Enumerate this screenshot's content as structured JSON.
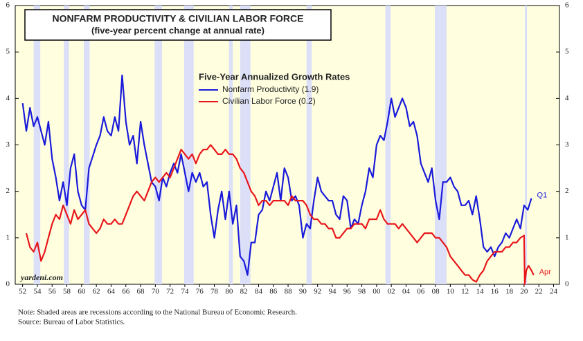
{
  "chart_data": {
    "type": "line",
    "title": "NONFARM PRODUCTIVITY & CIVILIAN LABOR FORCE",
    "subtitle": "(five-year percent change at annual rate)",
    "legend_title": "Five-Year Annualized Growth Rates",
    "annotations": [
      "Q1",
      "Apr",
      "yardeni.com"
    ],
    "notes": [
      "Note: Shaded areas are recessions according to the National Bureau of Economic Research.",
      "Source: Bureau of Labor Statistics."
    ],
    "recessions": [
      [
        1953.5,
        1954.4
      ],
      [
        1957.6,
        1958.3
      ],
      [
        1960.3,
        1961.1
      ],
      [
        1969.9,
        1970.9
      ],
      [
        1973.9,
        1975.2
      ],
      [
        1980.0,
        1980.5
      ],
      [
        1981.5,
        1982.9
      ],
      [
        1990.5,
        1991.2
      ],
      [
        2001.2,
        2001.9
      ],
      [
        2007.9,
        2009.5
      ],
      [
        2020.1,
        2020.4
      ]
    ],
    "recession_color": "#dcdff8",
    "background": "#ffffe0",
    "xlim": [
      1951,
      2024.8
    ],
    "ylim": [
      0,
      6
    ],
    "yticks": [
      0,
      1,
      2,
      3,
      4,
      5,
      6
    ],
    "y2lim": [
      0,
      6
    ],
    "y2ticks": [
      0,
      1,
      2,
      3,
      4,
      5,
      6
    ],
    "xticks": [
      {
        "value": 1952,
        "label": "52"
      },
      {
        "value": 1954,
        "label": "54"
      },
      {
        "value": 1956,
        "label": "56"
      },
      {
        "value": 1958,
        "label": "58"
      },
      {
        "value": 1960,
        "label": "60"
      },
      {
        "value": 1962,
        "label": "62"
      },
      {
        "value": 1964,
        "label": "64"
      },
      {
        "value": 1966,
        "label": "66"
      },
      {
        "value": 1968,
        "label": "68"
      },
      {
        "value": 1970,
        "label": "70"
      },
      {
        "value": 1972,
        "label": "72"
      },
      {
        "value": 1974,
        "label": "74"
      },
      {
        "value": 1976,
        "label": "76"
      },
      {
        "value": 1978,
        "label": "78"
      },
      {
        "value": 1980,
        "label": "80"
      },
      {
        "value": 1982,
        "label": "82"
      },
      {
        "value": 1984,
        "label": "84"
      },
      {
        "value": 1986,
        "label": "86"
      },
      {
        "value": 1988,
        "label": "88"
      },
      {
        "value": 1990,
        "label": "90"
      },
      {
        "value": 1992,
        "label": "92"
      },
      {
        "value": 1994,
        "label": "94"
      },
      {
        "value": 1996,
        "label": "96"
      },
      {
        "value": 1998,
        "label": "98"
      },
      {
        "value": 2000,
        "label": "00"
      },
      {
        "value": 2002,
        "label": "02"
      },
      {
        "value": 2004,
        "label": "04"
      },
      {
        "value": 2006,
        "label": "06"
      },
      {
        "value": 2008,
        "label": "08"
      },
      {
        "value": 2010,
        "label": "10"
      },
      {
        "value": 2012,
        "label": "12"
      },
      {
        "value": 2014,
        "label": "14"
      },
      {
        "value": 2016,
        "label": "16"
      },
      {
        "value": 2018,
        "label": "18"
      },
      {
        "value": 2020,
        "label": "20"
      },
      {
        "value": 2022,
        "label": "22"
      },
      {
        "value": 2024,
        "label": "24"
      }
    ],
    "series": [
      {
        "name": "Nonfarm Productivity (1.9)",
        "color": "#1a1adb",
        "x": [
          1952,
          1952.5,
          1953,
          1953.5,
          1954,
          1954.5,
          1955,
          1955.5,
          1956,
          1956.5,
          1957,
          1957.5,
          1958,
          1958.5,
          1959,
          1959.5,
          1960,
          1960.5,
          1961,
          1962,
          1962.5,
          1963,
          1963.5,
          1964,
          1964.5,
          1965,
          1965.5,
          1966,
          1966.5,
          1967,
          1967.5,
          1968,
          1968.5,
          1969,
          1969.5,
          1970,
          1970.5,
          1971,
          1971.5,
          1972,
          1972.5,
          1973,
          1973.5,
          1974,
          1974.5,
          1975,
          1975.5,
          1976,
          1976.5,
          1977,
          1977.5,
          1978,
          1978.5,
          1979,
          1979.5,
          1980,
          1980.5,
          1981,
          1981.5,
          1982,
          1982.5,
          1983,
          1983.5,
          1984,
          1984.5,
          1985,
          1985.5,
          1986,
          1986.5,
          1987,
          1987.5,
          1988,
          1988.5,
          1989,
          1989.5,
          1990,
          1990.5,
          1991,
          1991.5,
          1992,
          1992.5,
          1993,
          1993.5,
          1994,
          1994.5,
          1995,
          1995.5,
          1996,
          1996.5,
          1997,
          1997.5,
          1998,
          1998.5,
          1999,
          1999.5,
          2000,
          2000.5,
          2001,
          2001.5,
          2002,
          2002.5,
          2003,
          2003.5,
          2004,
          2004.5,
          2005,
          2005.5,
          2006,
          2006.5,
          2007,
          2007.5,
          2008,
          2008.5,
          2009,
          2009.5,
          2010,
          2010.5,
          2011,
          2011.5,
          2012,
          2012.5,
          2013,
          2013.5,
          2014,
          2014.5,
          2015,
          2015.5,
          2016,
          2016.5,
          2017,
          2017.5,
          2018,
          2018.5,
          2019,
          2019.5,
          2020,
          2020.5,
          2021
        ],
        "values": [
          3.9,
          3.3,
          3.8,
          3.4,
          3.6,
          3.3,
          3.0,
          3.5,
          2.7,
          2.3,
          1.8,
          2.2,
          1.7,
          2.5,
          2.8,
          2.0,
          1.7,
          1.6,
          2.5,
          3.0,
          3.2,
          3.6,
          3.3,
          3.2,
          3.6,
          3.3,
          4.5,
          3.5,
          3.0,
          3.2,
          2.6,
          3.5,
          3.0,
          2.6,
          2.2,
          2.1,
          1.8,
          2.3,
          2.1,
          2.4,
          2.6,
          2.4,
          2.8,
          2.4,
          2.0,
          2.4,
          2.2,
          2.4,
          2.1,
          2.2,
          1.5,
          1.0,
          1.6,
          2.0,
          1.4,
          2.0,
          1.3,
          1.7,
          0.6,
          0.5,
          0.2,
          0.9,
          0.9,
          1.5,
          1.6,
          2.0,
          1.8,
          2.1,
          2.4,
          1.8,
          2.5,
          2.3,
          1.8,
          1.9,
          1.7,
          1.0,
          1.3,
          1.2,
          1.8,
          2.3,
          2.0,
          1.9,
          1.8,
          1.8,
          1.5,
          1.4,
          1.9,
          1.8,
          1.2,
          1.4,
          1.3,
          1.7,
          2.0,
          2.5,
          2.3,
          3.0,
          3.2,
          3.1,
          3.5,
          4.0,
          3.6,
          3.8,
          4.0,
          3.8,
          3.4,
          3.5,
          3.2,
          2.6,
          2.4,
          2.2,
          2.5,
          1.8,
          1.4,
          2.2,
          2.2,
          2.3,
          2.1,
          2.0,
          1.7,
          1.7,
          1.8,
          1.5,
          1.9,
          1.4,
          0.8,
          0.7,
          0.8,
          0.6,
          0.8,
          0.9,
          1.1,
          1.0,
          1.2,
          1.4,
          1.2,
          1.7,
          1.6,
          1.85
        ]
      },
      {
        "name": "Civilian Labor Force (0.2)",
        "color": "#e8161b",
        "x": [
          1952.5,
          1953,
          1953.5,
          1954,
          1954.5,
          1955,
          1955.5,
          1956,
          1956.5,
          1957,
          1957.5,
          1958,
          1958.5,
          1959,
          1959.5,
          1960,
          1960.5,
          1961,
          1961.5,
          1962,
          1962.5,
          1963,
          1963.5,
          1964,
          1964.5,
          1965,
          1965.5,
          1966,
          1966.5,
          1967,
          1967.5,
          1968,
          1968.5,
          1969,
          1969.5,
          1970,
          1970.5,
          1971,
          1971.5,
          1972,
          1972.5,
          1973,
          1973.5,
          1974,
          1974.5,
          1975,
          1975.5,
          1976,
          1976.5,
          1977,
          1977.5,
          1978,
          1978.5,
          1979,
          1979.5,
          1980,
          1980.5,
          1981,
          1981.5,
          1982,
          1982.5,
          1983,
          1983.5,
          1984,
          1984.5,
          1985,
          1985.5,
          1986,
          1986.5,
          1987,
          1987.5,
          1988,
          1988.5,
          1989,
          1989.5,
          1990,
          1990.5,
          1991,
          1991.5,
          1992,
          1992.5,
          1993,
          1993.5,
          1994,
          1994.5,
          1995,
          1995.5,
          1996,
          1996.5,
          1997,
          1997.5,
          1998,
          1998.5,
          1999,
          1999.5,
          2000,
          2000.5,
          2001,
          2001.5,
          2002,
          2002.5,
          2003,
          2003.5,
          2004,
          2004.5,
          2005,
          2005.5,
          2006,
          2006.5,
          2007,
          2007.5,
          2008,
          2008.5,
          2009,
          2009.5,
          2010,
          2010.5,
          2011,
          2011.5,
          2012,
          2012.5,
          2013,
          2013.5,
          2014,
          2014.5,
          2015,
          2015.5,
          2016,
          2016.5,
          2017,
          2017.5,
          2018,
          2018.5,
          2019,
          2019.5,
          2020,
          2020.1,
          2020.3,
          2020.6,
          2021,
          2021.3
        ],
        "values": [
          1.1,
          0.8,
          0.7,
          0.9,
          0.5,
          0.7,
          1.0,
          1.3,
          1.5,
          1.4,
          1.7,
          1.5,
          1.3,
          1.6,
          1.4,
          1.5,
          1.6,
          1.3,
          1.2,
          1.1,
          1.2,
          1.4,
          1.3,
          1.3,
          1.4,
          1.3,
          1.3,
          1.5,
          1.7,
          1.9,
          2.0,
          1.9,
          1.8,
          2.0,
          2.2,
          2.3,
          2.2,
          2.3,
          2.4,
          2.3,
          2.5,
          2.7,
          2.9,
          2.8,
          2.7,
          2.8,
          2.6,
          2.8,
          2.9,
          2.9,
          3.0,
          2.9,
          2.8,
          2.8,
          2.9,
          2.8,
          2.8,
          2.7,
          2.5,
          2.4,
          2.2,
          2.0,
          1.9,
          1.7,
          1.8,
          1.8,
          1.7,
          1.8,
          1.8,
          1.8,
          1.8,
          1.7,
          1.9,
          1.8,
          1.8,
          1.8,
          1.7,
          1.5,
          1.4,
          1.4,
          1.3,
          1.3,
          1.2,
          1.2,
          1.0,
          1.0,
          1.1,
          1.2,
          1.2,
          1.3,
          1.3,
          1.3,
          1.2,
          1.4,
          1.4,
          1.4,
          1.6,
          1.4,
          1.3,
          1.3,
          1.3,
          1.2,
          1.3,
          1.2,
          1.1,
          1.0,
          0.9,
          1.0,
          1.1,
          1.1,
          1.1,
          1.0,
          1.0,
          0.9,
          0.8,
          0.6,
          0.5,
          0.4,
          0.3,
          0.2,
          0.2,
          0.1,
          0.05,
          0.2,
          0.3,
          0.5,
          0.6,
          0.7,
          0.7,
          0.7,
          0.8,
          0.8,
          0.9,
          0.9,
          1.0,
          1.05,
          0.0,
          0.3,
          0.4,
          0.3,
          0.2
        ]
      }
    ]
  }
}
